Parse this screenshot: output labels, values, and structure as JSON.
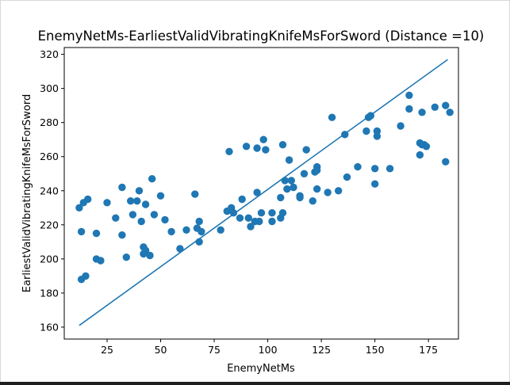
{
  "chart_data": {
    "type": "scatter",
    "title": "EnemyNetMs-EarliestValidVibratingKnifeMsForSword  (Distance =10)",
    "xlabel": "EnemyNetMs",
    "ylabel": "EarliestValidVibratingKnifeMsForSword",
    "xlim": [
      5,
      189
    ],
    "ylim": [
      153,
      324
    ],
    "xticks": [
      25,
      50,
      75,
      100,
      125,
      150,
      175
    ],
    "yticks": [
      160,
      180,
      200,
      220,
      240,
      260,
      280,
      300,
      320
    ],
    "grid": false,
    "marker_color": "#1f77b4",
    "line_color": "#1f77b4",
    "points": [
      {
        "x": 12,
        "y": 230
      },
      {
        "x": 13,
        "y": 188
      },
      {
        "x": 13,
        "y": 216
      },
      {
        "x": 14,
        "y": 233
      },
      {
        "x": 15,
        "y": 190
      },
      {
        "x": 16,
        "y": 235
      },
      {
        "x": 20,
        "y": 215
      },
      {
        "x": 20,
        "y": 200
      },
      {
        "x": 22,
        "y": 199
      },
      {
        "x": 25,
        "y": 233
      },
      {
        "x": 29,
        "y": 224
      },
      {
        "x": 32,
        "y": 242
      },
      {
        "x": 32,
        "y": 214
      },
      {
        "x": 34,
        "y": 201
      },
      {
        "x": 36,
        "y": 234
      },
      {
        "x": 37,
        "y": 226
      },
      {
        "x": 39,
        "y": 234
      },
      {
        "x": 40,
        "y": 240
      },
      {
        "x": 41,
        "y": 222
      },
      {
        "x": 42,
        "y": 203
      },
      {
        "x": 42,
        "y": 207
      },
      {
        "x": 43,
        "y": 232
      },
      {
        "x": 43,
        "y": 205
      },
      {
        "x": 45,
        "y": 202
      },
      {
        "x": 46,
        "y": 247
      },
      {
        "x": 47,
        "y": 226
      },
      {
        "x": 50,
        "y": 237
      },
      {
        "x": 52,
        "y": 223
      },
      {
        "x": 55,
        "y": 216
      },
      {
        "x": 59,
        "y": 206
      },
      {
        "x": 62,
        "y": 217
      },
      {
        "x": 66,
        "y": 238
      },
      {
        "x": 67,
        "y": 218
      },
      {
        "x": 68,
        "y": 222
      },
      {
        "x": 68,
        "y": 210
      },
      {
        "x": 69,
        "y": 216
      },
      {
        "x": 78,
        "y": 217
      },
      {
        "x": 81,
        "y": 228
      },
      {
        "x": 82,
        "y": 263
      },
      {
        "x": 83,
        "y": 230
      },
      {
        "x": 84,
        "y": 227
      },
      {
        "x": 87,
        "y": 224
      },
      {
        "x": 88,
        "y": 235
      },
      {
        "x": 90,
        "y": 266
      },
      {
        "x": 91,
        "y": 224
      },
      {
        "x": 92,
        "y": 219
      },
      {
        "x": 94,
        "y": 222
      },
      {
        "x": 95,
        "y": 265
      },
      {
        "x": 95,
        "y": 239
      },
      {
        "x": 96,
        "y": 222
      },
      {
        "x": 97,
        "y": 227
      },
      {
        "x": 98,
        "y": 270
      },
      {
        "x": 99,
        "y": 264
      },
      {
        "x": 102,
        "y": 227
      },
      {
        "x": 102,
        "y": 222
      },
      {
        "x": 106,
        "y": 236
      },
      {
        "x": 106,
        "y": 224
      },
      {
        "x": 107,
        "y": 227
      },
      {
        "x": 107,
        "y": 267
      },
      {
        "x": 108,
        "y": 246
      },
      {
        "x": 109,
        "y": 241
      },
      {
        "x": 110,
        "y": 258
      },
      {
        "x": 111,
        "y": 246
      },
      {
        "x": 112,
        "y": 242
      },
      {
        "x": 115,
        "y": 237
      },
      {
        "x": 115,
        "y": 236
      },
      {
        "x": 117,
        "y": 250
      },
      {
        "x": 118,
        "y": 264
      },
      {
        "x": 121,
        "y": 234
      },
      {
        "x": 122,
        "y": 251
      },
      {
        "x": 123,
        "y": 254
      },
      {
        "x": 123,
        "y": 252
      },
      {
        "x": 123,
        "y": 241
      },
      {
        "x": 128,
        "y": 239
      },
      {
        "x": 130,
        "y": 283
      },
      {
        "x": 133,
        "y": 240
      },
      {
        "x": 136,
        "y": 273
      },
      {
        "x": 137,
        "y": 248
      },
      {
        "x": 142,
        "y": 254
      },
      {
        "x": 146,
        "y": 275
      },
      {
        "x": 147,
        "y": 283
      },
      {
        "x": 148,
        "y": 284
      },
      {
        "x": 150,
        "y": 253
      },
      {
        "x": 150,
        "y": 244
      },
      {
        "x": 151,
        "y": 275
      },
      {
        "x": 151,
        "y": 272
      },
      {
        "x": 157,
        "y": 253
      },
      {
        "x": 162,
        "y": 278
      },
      {
        "x": 166,
        "y": 296
      },
      {
        "x": 166,
        "y": 288
      },
      {
        "x": 171,
        "y": 268
      },
      {
        "x": 171,
        "y": 261
      },
      {
        "x": 172,
        "y": 286
      },
      {
        "x": 172,
        "y": 267
      },
      {
        "x": 173,
        "y": 267
      },
      {
        "x": 174,
        "y": 266
      },
      {
        "x": 178,
        "y": 289
      },
      {
        "x": 183,
        "y": 290
      },
      {
        "x": 183,
        "y": 257
      },
      {
        "x": 185,
        "y": 286
      }
    ],
    "fit_line": {
      "x": [
        12,
        184
      ],
      "y": [
        161,
        317
      ]
    }
  }
}
